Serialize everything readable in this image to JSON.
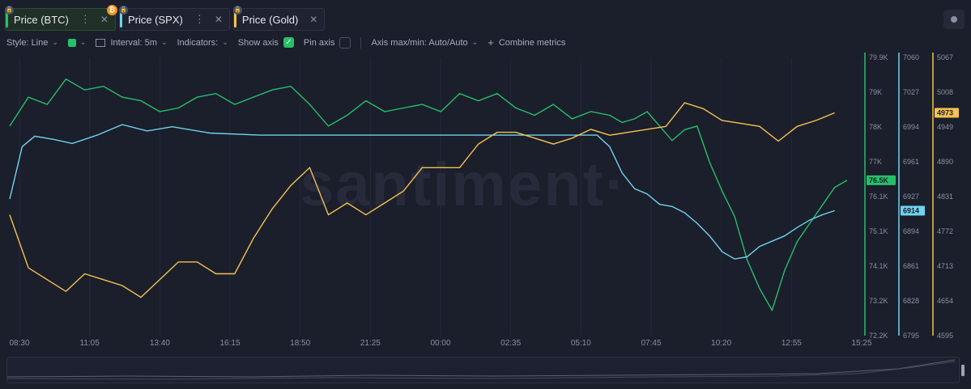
{
  "tabs": [
    {
      "label": "Price (BTC)",
      "color": "#26c06a",
      "active": true,
      "more": "⋮",
      "close": "✕"
    },
    {
      "label": "Price (SPX)",
      "color": "#6fd3ee",
      "active": false,
      "more": "⋮",
      "close": "✕"
    },
    {
      "label": "Price (Gold)",
      "color": "#f5c24e",
      "active": false,
      "more": "",
      "close": "✕"
    }
  ],
  "toolbar": {
    "style": "Style: Line",
    "interval": "Interval: 5m",
    "indicators": "Indicators:",
    "show_axis": "Show axis",
    "pin_axis": "Pin axis",
    "axis_maxmin": "Axis max/min: Auto/Auto",
    "combine": "Combine metrics",
    "combine_icon": "+"
  },
  "watermark": "santiment·",
  "chart_data": {
    "type": "line",
    "x_ticks": [
      "08:30",
      "11:05",
      "13:40",
      "16:15",
      "18:50",
      "21:25",
      "00:00",
      "02:35",
      "05:10",
      "07:45",
      "10:20",
      "12:55",
      "15:25"
    ],
    "axes": {
      "btc": {
        "ticks": [
          "79.9K",
          "79K",
          "78K",
          "77K",
          "76.1K",
          "75.1K",
          "74.1K",
          "73.2K",
          "72.2K"
        ],
        "range": [
          72200,
          79900
        ],
        "color": "#26c06a",
        "last_label": "76.5K"
      },
      "spx": {
        "ticks": [
          "7060",
          "7027",
          "6994",
          "6961",
          "6927",
          "6894",
          "6861",
          "6828",
          "6795"
        ],
        "range": [
          6795,
          7060
        ],
        "color": "#6fd3ee",
        "last_label": "6914"
      },
      "gold": {
        "ticks": [
          "5067",
          "5008",
          "4949",
          "4890",
          "4831",
          "4772",
          "4713",
          "4654",
          "4595"
        ],
        "range": [
          4595,
          5067
        ],
        "color": "#f5c24e",
        "last_label": "4973"
      }
    },
    "series": [
      {
        "name": "Price (BTC)",
        "axis": "btc",
        "x": [
          0,
          0.3,
          0.6,
          0.9,
          1.2,
          1.5,
          1.8,
          2.1,
          2.4,
          2.7,
          3.0,
          3.3,
          3.6,
          3.9,
          4.2,
          4.5,
          4.8,
          5.1,
          5.4,
          5.7,
          6.0,
          6.3,
          6.6,
          6.9,
          7.2,
          7.5,
          7.8,
          8.1,
          8.4,
          8.7,
          9.0,
          9.3,
          9.6,
          9.8,
          10.0,
          10.2,
          10.4,
          10.6,
          10.8,
          11.0,
          11.2,
          11.4,
          11.6,
          11.8,
          12.0,
          12.2,
          12.4,
          12.6,
          12.8,
          13.0,
          13.2,
          13.4
        ],
        "values": [
          78.0,
          78.8,
          78.6,
          79.3,
          79.0,
          79.1,
          78.8,
          78.7,
          78.4,
          78.5,
          78.8,
          78.9,
          78.6,
          78.8,
          79.0,
          79.1,
          78.6,
          78.0,
          78.3,
          78.7,
          78.4,
          78.5,
          78.6,
          78.4,
          78.9,
          78.7,
          78.9,
          78.5,
          78.3,
          78.6,
          78.2,
          78.4,
          78.3,
          78.1,
          78.2,
          78.4,
          78.0,
          77.6,
          77.9,
          78.0,
          77.0,
          76.2,
          75.5,
          74.3,
          73.5,
          72.9,
          74.0,
          74.8,
          75.3,
          75.8,
          76.3,
          76.5
        ]
      },
      {
        "name": "Price (SPX)",
        "axis": "spx",
        "x": [
          0,
          0.2,
          0.4,
          0.7,
          1.0,
          1.4,
          1.8,
          2.2,
          2.6,
          3.2,
          4.0,
          5.0,
          6.0,
          7.0,
          8.0,
          9.0,
          9.4,
          9.6,
          9.8,
          10.0,
          10.2,
          10.4,
          10.6,
          10.8,
          11.0,
          11.2,
          11.4,
          11.6,
          11.8,
          12.0,
          12.2,
          12.4,
          12.6,
          12.8,
          13.0,
          13.2
        ],
        "values": [
          6925,
          6975,
          6985,
          6982,
          6978,
          6986,
          6996,
          6990,
          6994,
          6988,
          6986,
          6986,
          6986,
          6986,
          6986,
          6986,
          6986,
          6975,
          6950,
          6935,
          6930,
          6920,
          6918,
          6912,
          6902,
          6890,
          6875,
          6868,
          6870,
          6880,
          6885,
          6890,
          6898,
          6905,
          6910,
          6914
        ]
      },
      {
        "name": "Price (Gold)",
        "axis": "gold",
        "x": [
          0,
          0.3,
          0.6,
          0.9,
          1.2,
          1.5,
          1.8,
          2.1,
          2.4,
          2.7,
          3.0,
          3.3,
          3.6,
          3.9,
          4.2,
          4.5,
          4.8,
          5.1,
          5.4,
          5.7,
          6.0,
          6.3,
          6.6,
          6.9,
          7.2,
          7.5,
          7.8,
          8.1,
          8.4,
          8.7,
          9.0,
          9.3,
          9.6,
          9.9,
          10.2,
          10.5,
          10.8,
          11.1,
          11.4,
          11.7,
          12.0,
          12.3,
          12.6,
          12.9,
          13.2
        ],
        "values": [
          4800,
          4710,
          4690,
          4670,
          4700,
          4690,
          4680,
          4660,
          4690,
          4720,
          4720,
          4700,
          4700,
          4760,
          4810,
          4850,
          4880,
          4800,
          4820,
          4800,
          4820,
          4840,
          4880,
          4880,
          4880,
          4920,
          4940,
          4940,
          4930,
          4920,
          4930,
          4945,
          4935,
          4940,
          4945,
          4950,
          4990,
          4980,
          4960,
          4955,
          4950,
          4925,
          4950,
          4960,
          4973
        ]
      }
    ]
  }
}
